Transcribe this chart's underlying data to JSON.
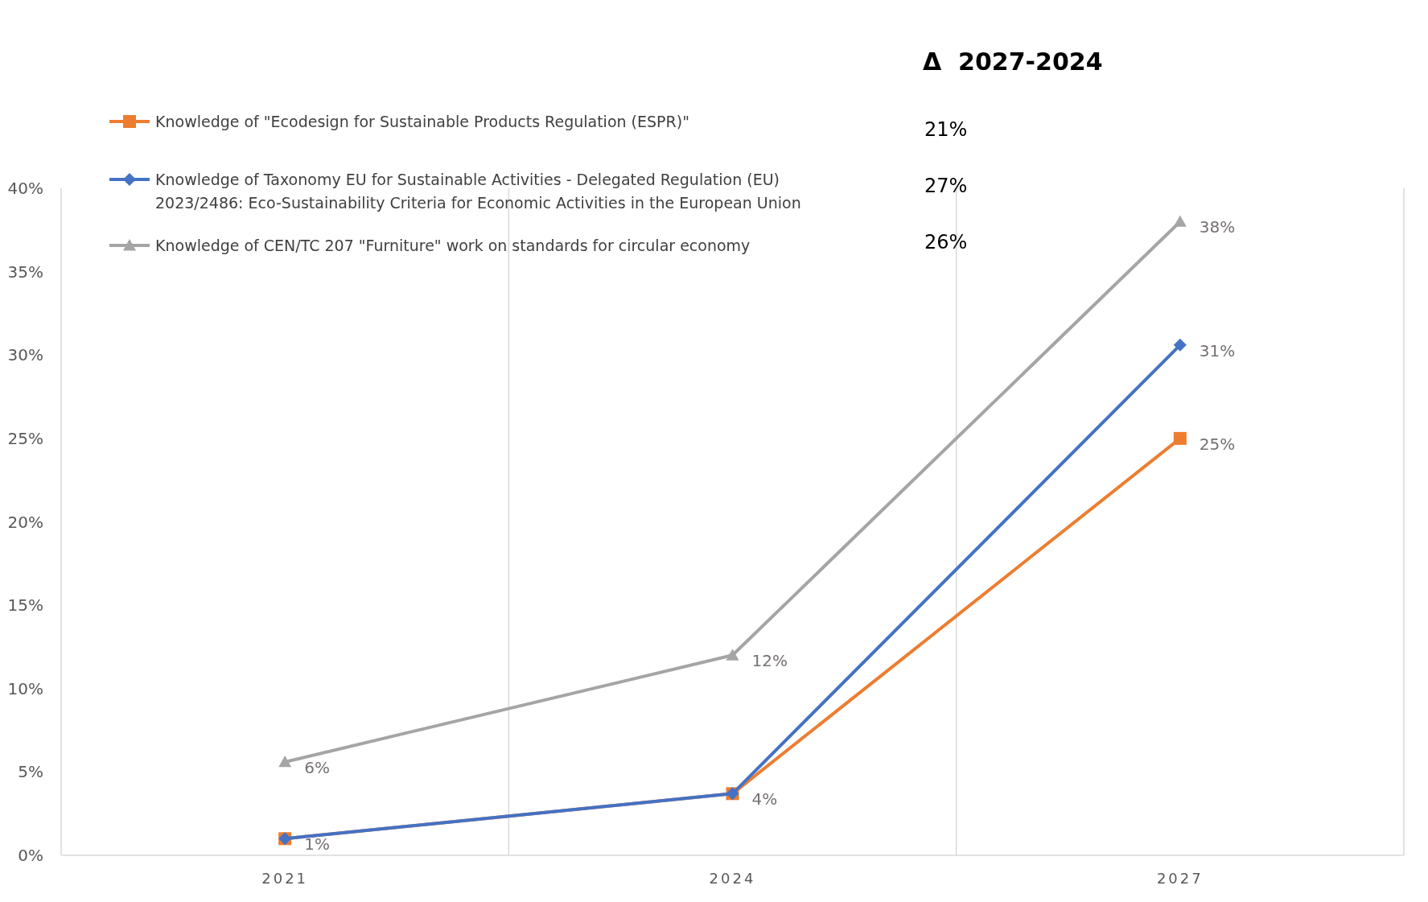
{
  "chart_data": {
    "type": "line",
    "categories": [
      "2021",
      "2024",
      "2027"
    ],
    "series": [
      {
        "name": "Knowledge of \"Ecodesign for Sustainable Products Regulation (ESPR)\"",
        "color": "#ed7d31",
        "marker": "square",
        "values": [
          1,
          3.7,
          25
        ],
        "value_labels": [
          "1%",
          "4%",
          "25%"
        ]
      },
      {
        "name": "Knowledge of Taxonomy EU for Sustainable Activities - Delegated Regulation (EU) 2023/2486: Eco-Sustainability Criteria for Economic Activities in the European Union",
        "color": "#4472c4",
        "marker": "diamond",
        "values": [
          1,
          3.7,
          30.6
        ],
        "value_labels": [
          null,
          null,
          "31%"
        ]
      },
      {
        "name": "Knowledge of CEN/TC 207 \"Furniture\" work on standards for circular economy",
        "color": "#a5a5a5",
        "marker": "triangle",
        "values": [
          5.6,
          12,
          38
        ],
        "value_labels": [
          "6%",
          "12%",
          "38%"
        ]
      }
    ],
    "ylim": [
      0,
      40
    ],
    "yticks": [
      {
        "value": 0,
        "label": "0%"
      },
      {
        "value": 5,
        "label": "5%"
      },
      {
        "value": 10,
        "label": "10%"
      },
      {
        "value": 15,
        "label": "15%"
      },
      {
        "value": 20,
        "label": "20%"
      },
      {
        "value": 25,
        "label": "25%"
      },
      {
        "value": 30,
        "label": "30%"
      },
      {
        "value": 35,
        "label": "35%"
      },
      {
        "value": 40,
        "label": "40%"
      }
    ],
    "grid": "x",
    "legend": "top left",
    "line_style": "solid",
    "annotations": [
      "Δ  2027-2024",
      "21%",
      "27%",
      "26%"
    ]
  }
}
